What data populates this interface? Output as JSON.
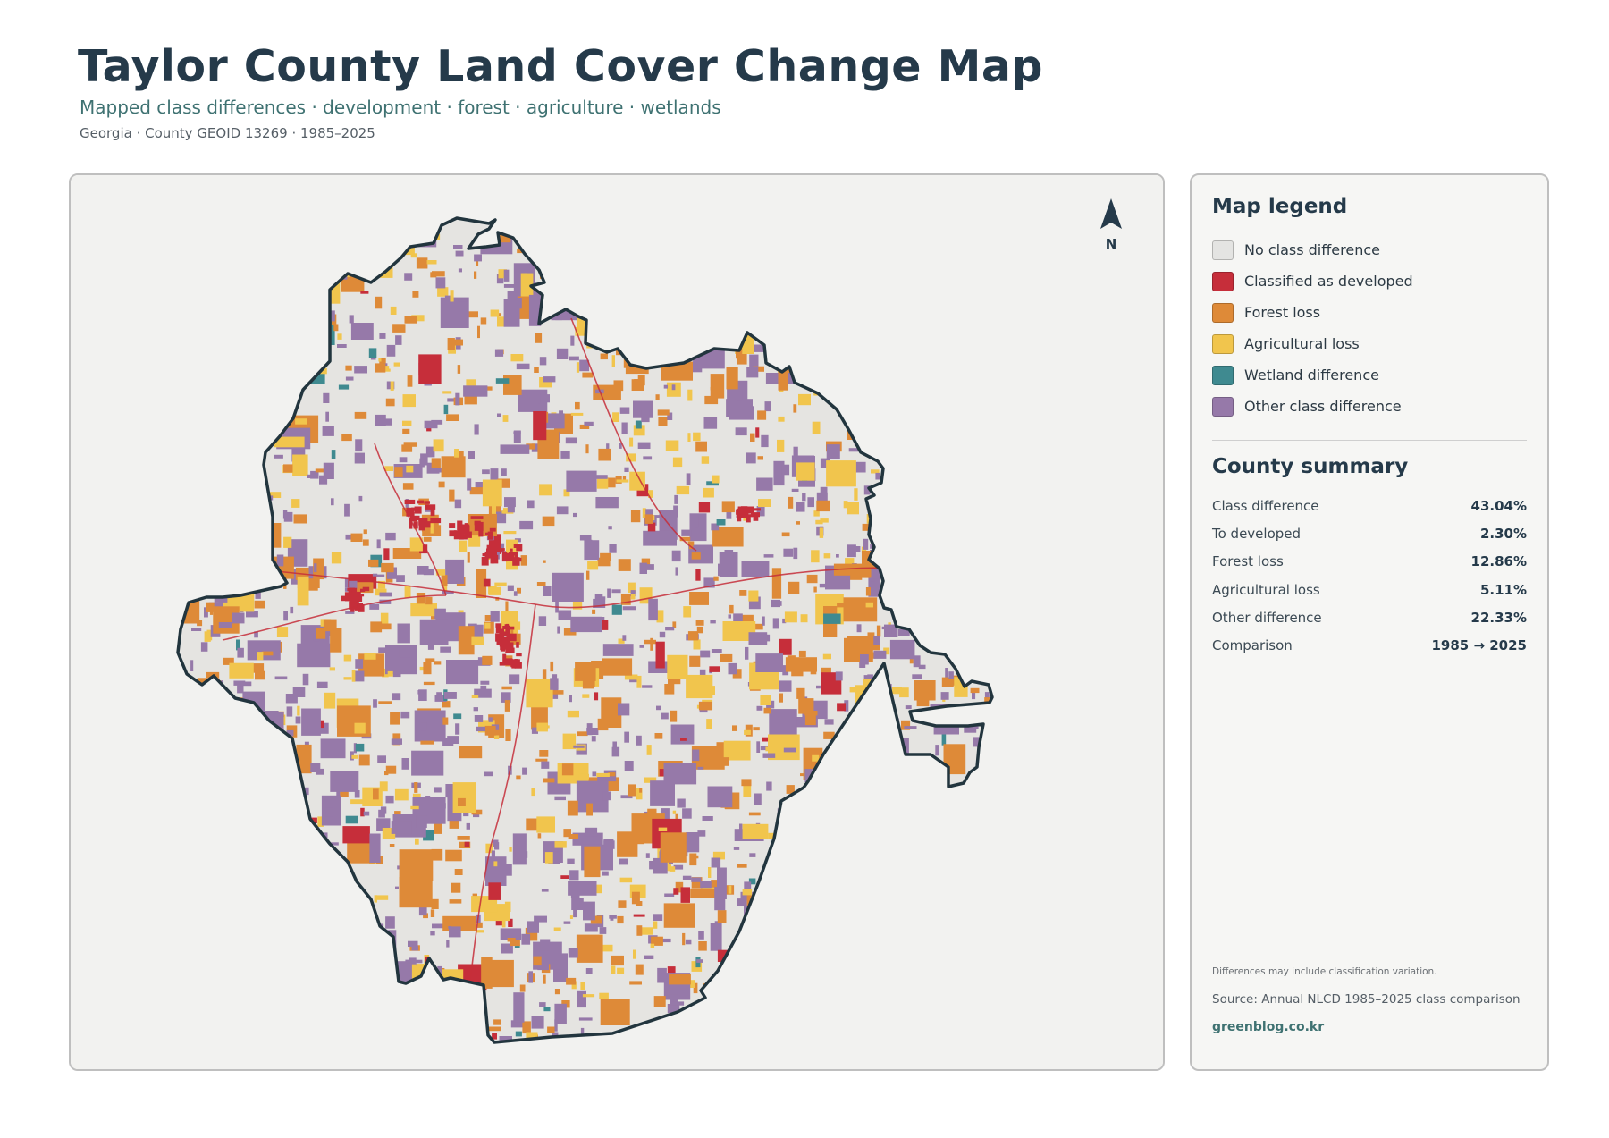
{
  "header": {
    "title": "Taylor County Land Cover Change Map",
    "subtitle": "Mapped class differences · development · forest · agriculture · wetlands",
    "meta": "Georgia · County GEOID 13269 · 1985–2025"
  },
  "map": {
    "north_label": "N",
    "colors": {
      "background": "#f2f2f0",
      "county_fill": "#e5e4e1",
      "outline": "#22353e"
    }
  },
  "legend": {
    "title": "Map legend",
    "items": [
      {
        "label": "No class difference",
        "color": "#e4e4e2"
      },
      {
        "label": "Classified as developed",
        "color": "#c62e3a"
      },
      {
        "label": "Forest loss",
        "color": "#de8a38"
      },
      {
        "label": "Agricultural loss",
        "color": "#f1c54d"
      },
      {
        "label": "Wetland difference",
        "color": "#3f8a90"
      },
      {
        "label": "Other class difference",
        "color": "#9679a9"
      }
    ]
  },
  "summary": {
    "title": "County summary",
    "rows": [
      {
        "label": "Class difference",
        "value": "43.04%"
      },
      {
        "label": "To developed",
        "value": "2.30%"
      },
      {
        "label": "Forest loss",
        "value": "12.86%"
      },
      {
        "label": "Agricultural loss",
        "value": "5.11%"
      },
      {
        "label": "Other difference",
        "value": "22.33%"
      },
      {
        "label": "Comparison",
        "value": "1985 → 2025"
      }
    ]
  },
  "footer": {
    "note": "Differences may include classification variation.",
    "source": "Source: Annual NLCD 1985–2025 class comparison",
    "credit": "greenblog.co.kr"
  }
}
